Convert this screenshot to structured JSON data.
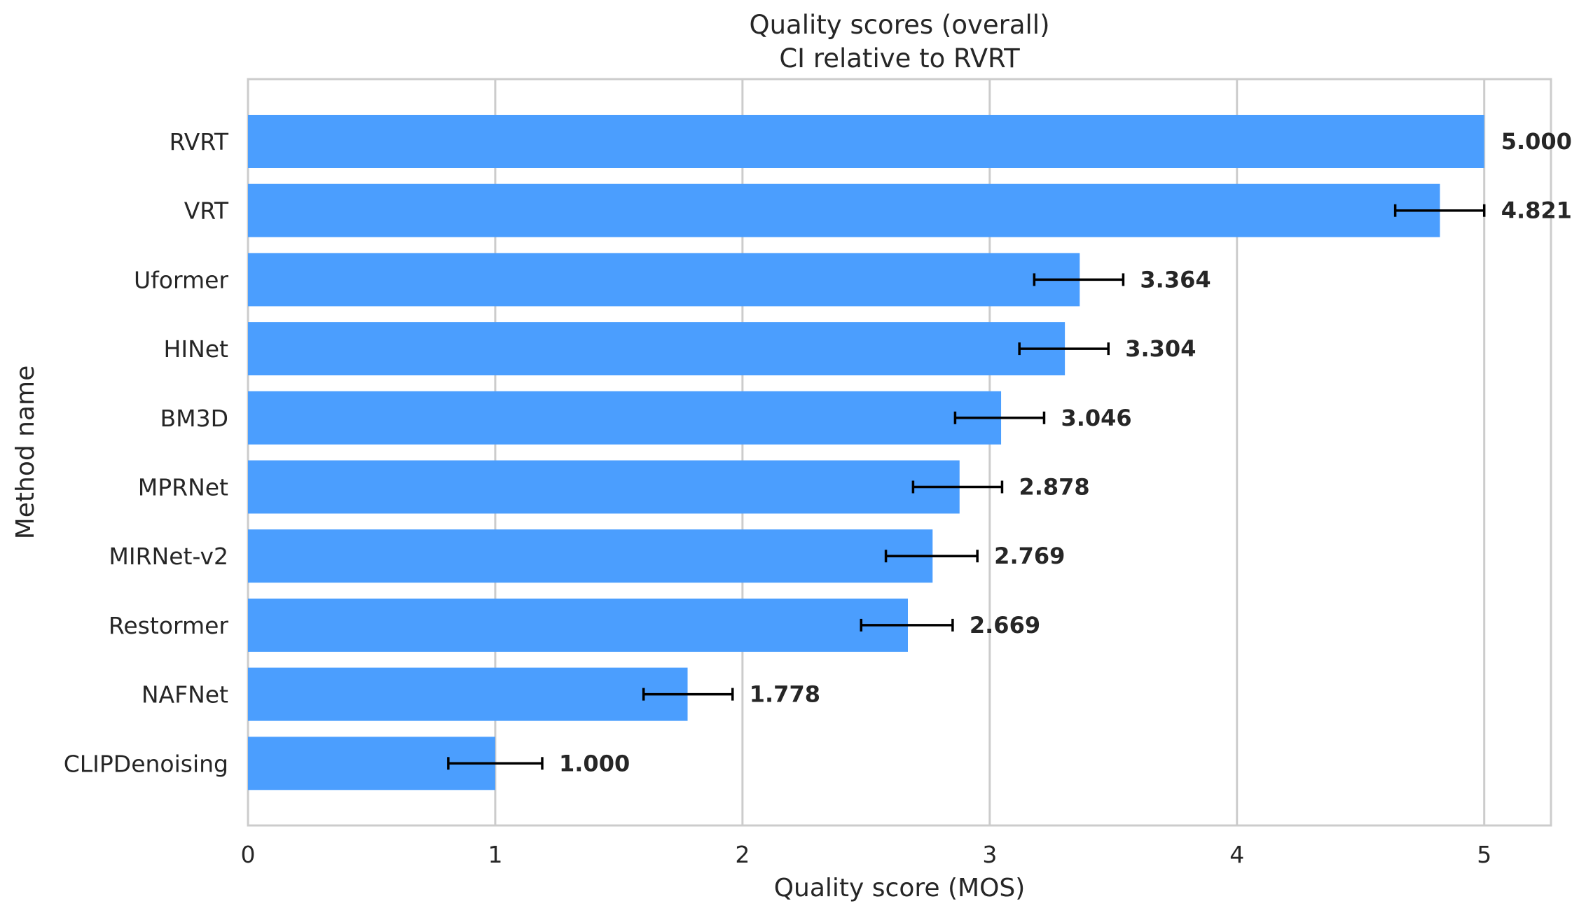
{
  "chart_data": {
    "type": "bar",
    "orientation": "horizontal",
    "title": "Quality scores (overall)",
    "subtitle": "CI relative to RVRT",
    "xlabel": "Quality score (MOS)",
    "ylabel": "Method name",
    "xlim": [
      0,
      5.27
    ],
    "xticks": [
      "0",
      "1",
      "2",
      "3",
      "4",
      "5"
    ],
    "grid": true,
    "bar_color": "#4b9efe",
    "categories": [
      "RVRT",
      "VRT",
      "Uformer",
      "HINet",
      "BM3D",
      "MPRNet",
      "MIRNet-v2",
      "Restormer",
      "NAFNet",
      "CLIPDenoising"
    ],
    "values": [
      5.0,
      4.821,
      3.364,
      3.304,
      3.046,
      2.878,
      2.769,
      2.669,
      1.778,
      1.0
    ],
    "value_labels": [
      "5.000",
      "4.821",
      "3.364",
      "3.304",
      "3.046",
      "2.878",
      "2.769",
      "2.669",
      "1.778",
      "1.000"
    ],
    "ci_low": [
      5.0,
      4.64,
      3.18,
      3.12,
      2.86,
      2.69,
      2.58,
      2.48,
      1.6,
      0.81
    ],
    "ci_high": [
      5.0,
      5.0,
      3.54,
      3.48,
      3.22,
      3.05,
      2.95,
      2.85,
      1.96,
      1.19
    ]
  }
}
